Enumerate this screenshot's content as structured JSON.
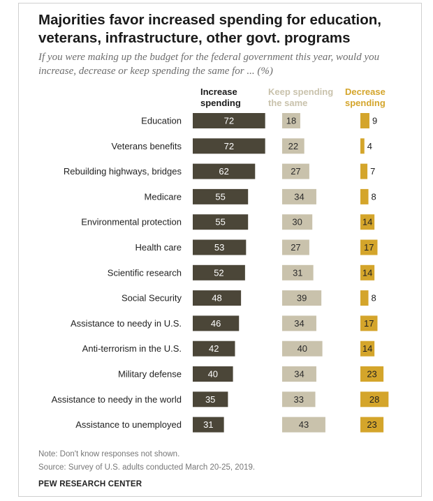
{
  "title": "Majorities favor increased spending for education, veterans, infrastructure, other govt. programs",
  "subtitle": "If you were making up the budget for the federal government this year, would you increase, decrease or keep spending the same for ... (%)",
  "note": "Note: Don't know responses not shown.",
  "source": "Source: Survey of U.S. adults conducted March 20-25, 2019.",
  "brand": "PEW RESEARCH CENTER",
  "colors": {
    "increase": "#4b4638",
    "same": "#c9c2ac",
    "decrease": "#d4a52b"
  },
  "chart_data": {
    "type": "bar",
    "categories": [
      "Education",
      "Veterans benefits",
      "Rebuilding highways, bridges",
      "Medicare",
      "Environmental protection",
      "Health care",
      "Scientific research",
      "Social Security",
      "Assistance to needy in U.S.",
      "Anti-terrorism in the U.S.",
      "Military defense",
      "Assistance to needy in the world",
      "Assistance to unemployed"
    ],
    "series": [
      {
        "name": "Increase spending",
        "values": [
          72,
          72,
          62,
          55,
          55,
          53,
          52,
          48,
          46,
          42,
          40,
          35,
          31
        ]
      },
      {
        "name": "Keep spending the same",
        "values": [
          18,
          22,
          27,
          34,
          30,
          27,
          31,
          39,
          34,
          40,
          34,
          33,
          43
        ]
      },
      {
        "name": "Decrease spending",
        "values": [
          9,
          4,
          7,
          8,
          14,
          17,
          14,
          8,
          17,
          14,
          23,
          28,
          23
        ]
      }
    ]
  }
}
